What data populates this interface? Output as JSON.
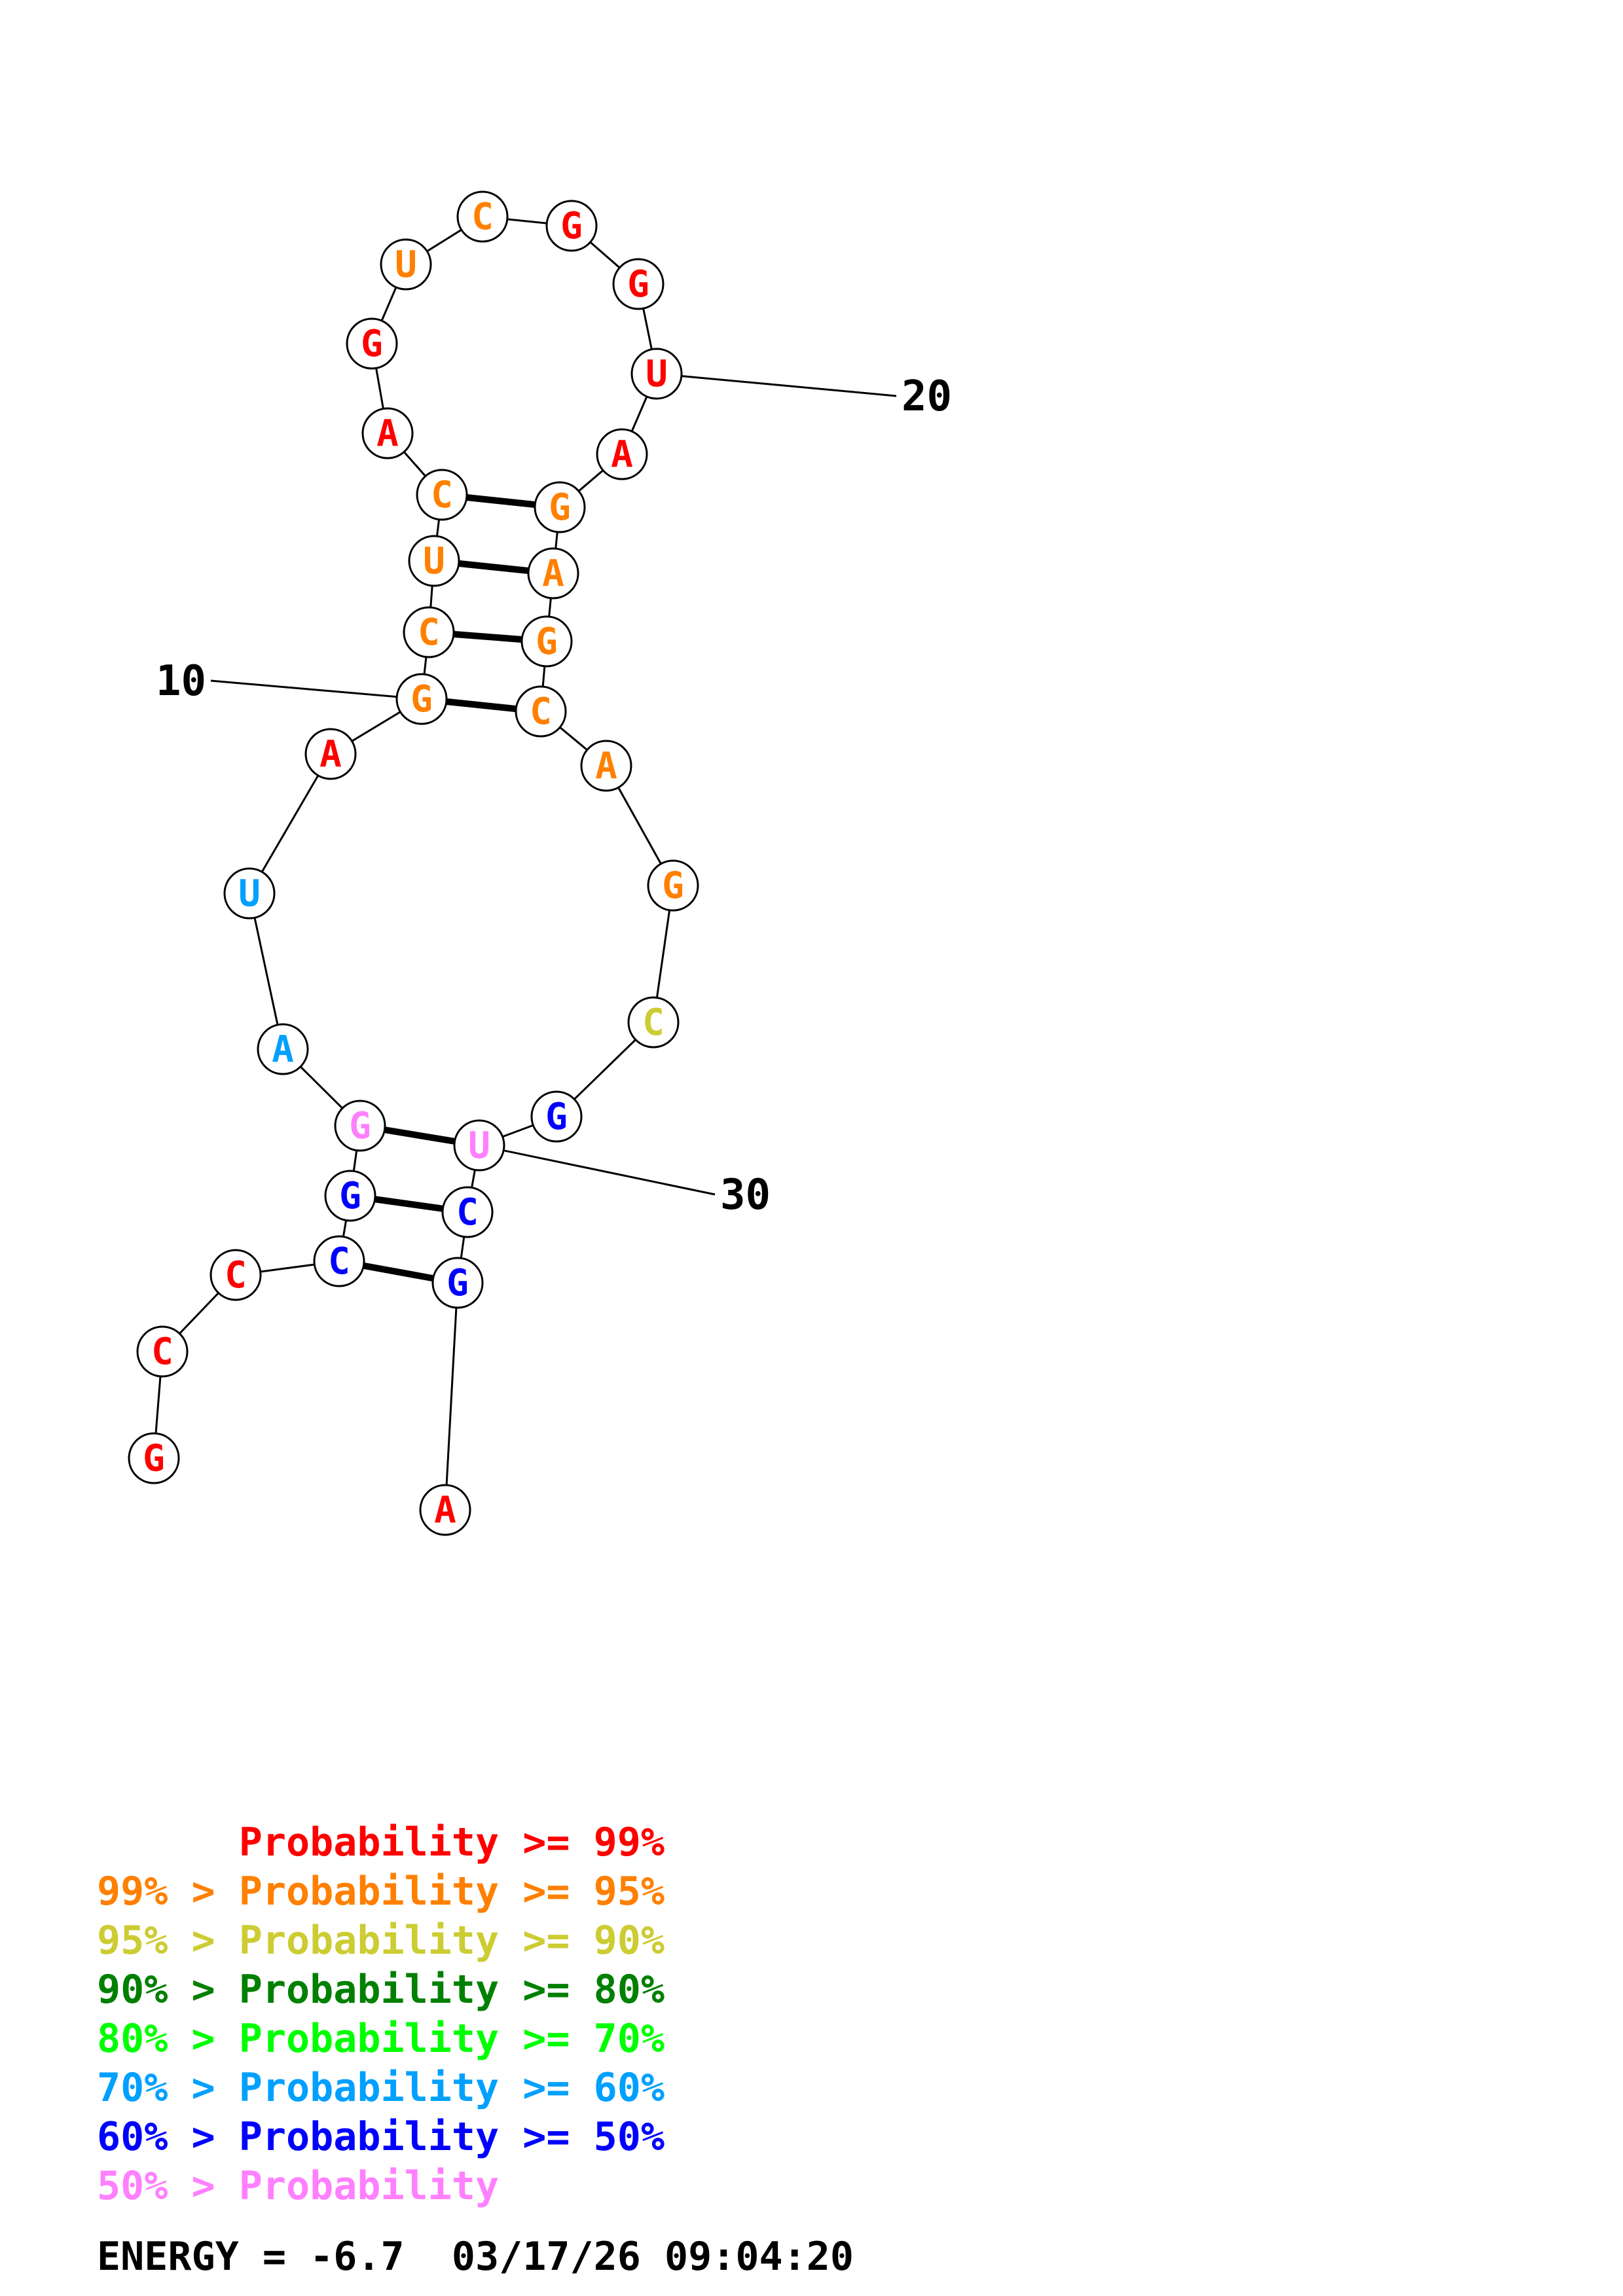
{
  "colors": {
    "c99": "#ff0000",
    "c95": "#ff8000",
    "c90": "#cccc33",
    "c80": "#008000",
    "c70": "#00ff00",
    "c60": "#00a0ff",
    "c50": "#0000ff",
    "cLow": "#ff80ff",
    "ink": "#000000"
  },
  "structure": {
    "nucleotides": [
      {
        "n": 1,
        "base": "G",
        "prob": "c99"
      },
      {
        "n": 2,
        "base": "C",
        "prob": "c99"
      },
      {
        "n": 3,
        "base": "C",
        "prob": "c99"
      },
      {
        "n": 4,
        "base": "C",
        "prob": "c50"
      },
      {
        "n": 5,
        "base": "G",
        "prob": "c50"
      },
      {
        "n": 6,
        "base": "G",
        "prob": "cLow"
      },
      {
        "n": 7,
        "base": "A",
        "prob": "c60"
      },
      {
        "n": 8,
        "base": "U",
        "prob": "c60"
      },
      {
        "n": 9,
        "base": "A",
        "prob": "c99"
      },
      {
        "n": 10,
        "base": "G",
        "prob": "c95"
      },
      {
        "n": 11,
        "base": "C",
        "prob": "c95"
      },
      {
        "n": 12,
        "base": "U",
        "prob": "c95"
      },
      {
        "n": 13,
        "base": "C",
        "prob": "c95"
      },
      {
        "n": 14,
        "base": "A",
        "prob": "c99"
      },
      {
        "n": 15,
        "base": "G",
        "prob": "c99"
      },
      {
        "n": 16,
        "base": "U",
        "prob": "c95"
      },
      {
        "n": 17,
        "base": "C",
        "prob": "c95"
      },
      {
        "n": 18,
        "base": "G",
        "prob": "c99"
      },
      {
        "n": 19,
        "base": "G",
        "prob": "c99"
      },
      {
        "n": 20,
        "base": "U",
        "prob": "c99"
      },
      {
        "n": 21,
        "base": "A",
        "prob": "c99"
      },
      {
        "n": 22,
        "base": "G",
        "prob": "c95"
      },
      {
        "n": 23,
        "base": "A",
        "prob": "c95"
      },
      {
        "n": 24,
        "base": "G",
        "prob": "c95"
      },
      {
        "n": 25,
        "base": "C",
        "prob": "c95"
      },
      {
        "n": 26,
        "base": "A",
        "prob": "c95"
      },
      {
        "n": 27,
        "base": "G",
        "prob": "c95"
      },
      {
        "n": 28,
        "base": "C",
        "prob": "c90"
      },
      {
        "n": 29,
        "base": "G",
        "prob": "c50"
      },
      {
        "n": 30,
        "base": "U",
        "prob": "cLow"
      },
      {
        "n": 31,
        "base": "C",
        "prob": "c50"
      },
      {
        "n": 32,
        "base": "G",
        "prob": "c50"
      },
      {
        "n": 33,
        "base": "A",
        "prob": "c99"
      }
    ],
    "pairs": [
      [
        4,
        32
      ],
      [
        5,
        31
      ],
      [
        6,
        30
      ],
      [
        10,
        25
      ],
      [
        11,
        24
      ],
      [
        12,
        23
      ],
      [
        13,
        22
      ]
    ],
    "index_labels": [
      {
        "text": "10",
        "n": 10
      },
      {
        "text": "20",
        "n": 20
      },
      {
        "text": "30",
        "n": 30
      }
    ]
  },
  "legend": [
    {
      "text": "      Probability >= 99%",
      "color": "c99"
    },
    {
      "text": "99% > Probability >= 95%",
      "color": "c95"
    },
    {
      "text": "95% > Probability >= 90%",
      "color": "c90"
    },
    {
      "text": "90% > Probability >= 80%",
      "color": "c80"
    },
    {
      "text": "80% > Probability >= 70%",
      "color": "c70"
    },
    {
      "text": "70% > Probability >= 60%",
      "color": "c60"
    },
    {
      "text": "60% > Probability >= 50%",
      "color": "c50"
    },
    {
      "text": "50% > Probability",
      "color": "cLow"
    }
  ],
  "energy_line": "ENERGY = -6.7  03/17/26 09:04:20"
}
